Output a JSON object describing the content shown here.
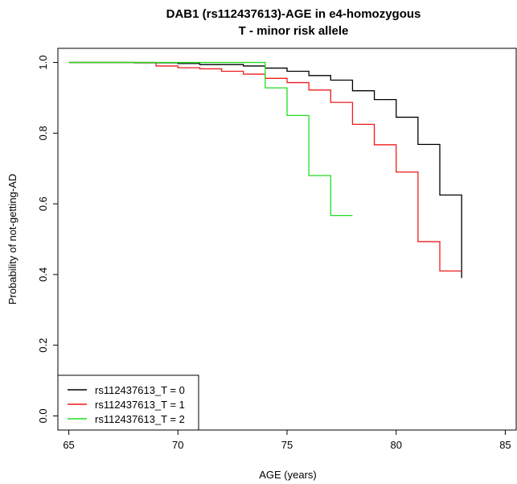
{
  "chart_data": {
    "type": "line",
    "title": "DAB1 (rs112437613)-AGE in e4-homozygous",
    "subtitle": "T - minor risk allele",
    "xlabel": "AGE (years)",
    "ylabel": "Probability of not-getting-AD",
    "xlim": [
      64.5,
      85.5
    ],
    "ylim": [
      -0.04,
      1.04
    ],
    "x_ticks": [
      65,
      70,
      75,
      80,
      85
    ],
    "y_ticks": [
      0.0,
      0.2,
      0.4,
      0.6,
      0.8,
      1.0
    ],
    "x_tick_labels": [
      "65",
      "70",
      "75",
      "80",
      "85"
    ],
    "y_tick_labels": [
      "0.0",
      "0.2",
      "0.4",
      "0.6",
      "0.8",
      "1.0"
    ],
    "legend_position": "bottom-left",
    "grid": false,
    "step": true,
    "series": [
      {
        "name": "rs112437613_T = 0",
        "color": "#000000",
        "x": [
          65,
          68,
          70,
          71,
          73,
          74,
          75,
          76,
          77,
          78,
          79,
          80,
          81,
          82,
          83
        ],
        "y": [
          1.0,
          0.999,
          0.997,
          0.994,
          0.99,
          0.984,
          0.975,
          0.963,
          0.95,
          0.92,
          0.895,
          0.845,
          0.768,
          0.625,
          0.39
        ]
      },
      {
        "name": "rs112437613_T = 1",
        "color": "#ee1c1c",
        "x": [
          65,
          69,
          70,
          71,
          72,
          73,
          74,
          75,
          76,
          77,
          78,
          79,
          80,
          81,
          82,
          83
        ],
        "y": [
          1.0,
          0.99,
          0.985,
          0.982,
          0.975,
          0.967,
          0.955,
          0.943,
          0.922,
          0.887,
          0.825,
          0.767,
          0.69,
          0.493,
          0.41,
          0.41
        ]
      },
      {
        "name": "rs112437613_T = 2",
        "color": "#22dd22",
        "x": [
          65,
          74,
          75,
          76,
          77,
          78
        ],
        "y": [
          1.0,
          0.928,
          0.85,
          0.68,
          0.567,
          0.567
        ]
      }
    ]
  }
}
